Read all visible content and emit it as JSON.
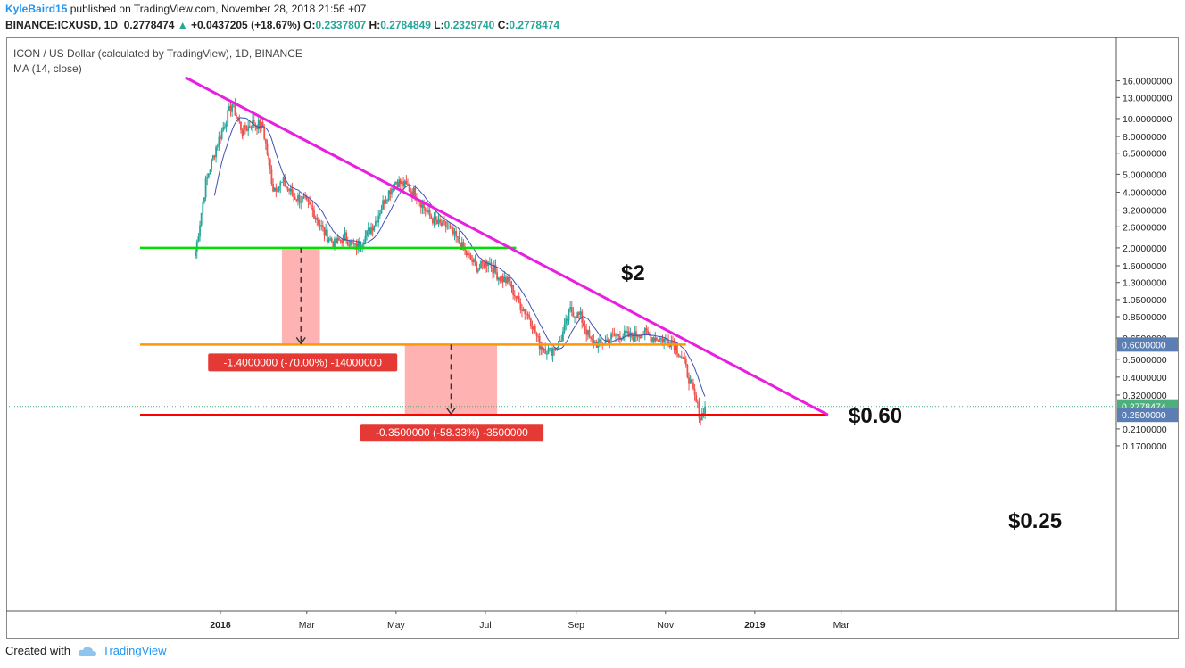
{
  "header": {
    "author": "KyleBaird15",
    "published": "published on TradingView.com, November 28, 2018 21:56 +07",
    "symbol": "BINANCE:ICXUSD, 1D",
    "last": "0.2778474",
    "change_arrow": "▲",
    "change": "+0.0437205 (+18.67%)",
    "o_label": "O:",
    "o": "0.2337807",
    "h_label": "H:",
    "h": "0.2784849",
    "l_label": "L:",
    "l": "0.2329740",
    "c_label": "C:",
    "c": "0.2778474"
  },
  "legend": {
    "title": "ICON / US Dollar (calculated by TradingView), 1D, BINANCE",
    "indicator": "MA (14, close)"
  },
  "annotations": {
    "level_2": "$2",
    "level_060": "$0.60",
    "level_025": "$0.25",
    "drop1": "-1.4000000 (-70.00%) -14000000",
    "drop2": "-0.3500000 (-58.33%) -3500000",
    "price_tag_060": "0.6000000",
    "price_tag_last": "0.2778474",
    "price_tag_025": "0.2500000"
  },
  "footer": {
    "created": "Created with",
    "brand": "TradingView"
  },
  "colors": {
    "up": "#26a69a",
    "down": "#ef5350",
    "ma": "#3f51b5",
    "trend": "#e91ee0",
    "green_level": "#00e000",
    "orange_level": "#ff9800",
    "red_level": "#ff0000",
    "shade": "#ffb2b2",
    "tag_blue": "#5b7fb5",
    "tag_green": "#4caf7d"
  },
  "chart_data": {
    "type": "candlestick",
    "scale": "log",
    "y_ticks": [
      "16.0000000",
      "13.0000000",
      "10.0000000",
      "8.0000000",
      "6.5000000",
      "5.0000000",
      "4.0000000",
      "3.2000000",
      "2.6000000",
      "2.0000000",
      "1.6000000",
      "1.3000000",
      "1.0500000",
      "0.8500000",
      "0.6500000",
      "0.5000000",
      "0.4000000",
      "0.3200000",
      "0.2100000",
      "0.1700000"
    ],
    "x_ticks": [
      "2018",
      "Mar",
      "May",
      "Jul",
      "Sep",
      "Nov",
      "2019",
      "Mar"
    ],
    "levels": [
      {
        "name": "support $2",
        "value": 2.0
      },
      {
        "name": "support $0.60",
        "value": 0.6
      },
      {
        "name": "target $0.25",
        "value": 0.25
      }
    ],
    "trendline": {
      "from": {
        "date": "2017-12-08",
        "value": 16.7
      },
      "to": {
        "date": "2019-02-20",
        "value": 0.25
      }
    },
    "measures": [
      {
        "from": 2.0,
        "to": 0.6,
        "change": -1.4,
        "pct": -70.0
      },
      {
        "from": 0.6,
        "to": 0.25,
        "change": -0.35,
        "pct": -58.33
      }
    ],
    "weekly_closes": [
      {
        "date": "2017-12-15",
        "close": 1.9
      },
      {
        "date": "2017-12-22",
        "close": 4.5
      },
      {
        "date": "2017-12-29",
        "close": 7.0
      },
      {
        "date": "2018-01-05",
        "close": 10.0
      },
      {
        "date": "2018-01-09",
        "close": 12.0
      },
      {
        "date": "2018-01-16",
        "close": 8.5
      },
      {
        "date": "2018-01-23",
        "close": 9.5
      },
      {
        "date": "2018-01-30",
        "close": 9.0
      },
      {
        "date": "2018-02-06",
        "close": 4.2
      },
      {
        "date": "2018-02-13",
        "close": 4.5
      },
      {
        "date": "2018-02-20",
        "close": 3.8
      },
      {
        "date": "2018-02-27",
        "close": 3.6
      },
      {
        "date": "2018-03-06",
        "close": 3.1
      },
      {
        "date": "2018-03-13",
        "close": 2.4
      },
      {
        "date": "2018-03-20",
        "close": 2.1
      },
      {
        "date": "2018-03-27",
        "close": 2.3
      },
      {
        "date": "2018-04-03",
        "close": 2.0
      },
      {
        "date": "2018-04-10",
        "close": 2.3
      },
      {
        "date": "2018-04-17",
        "close": 2.8
      },
      {
        "date": "2018-04-24",
        "close": 3.8
      },
      {
        "date": "2018-05-01",
        "close": 4.6
      },
      {
        "date": "2018-05-08",
        "close": 4.3
      },
      {
        "date": "2018-05-15",
        "close": 3.9
      },
      {
        "date": "2018-05-22",
        "close": 3.1
      },
      {
        "date": "2018-05-29",
        "close": 2.7
      },
      {
        "date": "2018-06-05",
        "close": 2.6
      },
      {
        "date": "2018-06-12",
        "close": 2.2
      },
      {
        "date": "2018-06-19",
        "close": 1.8
      },
      {
        "date": "2018-06-26",
        "close": 1.55
      },
      {
        "date": "2018-07-03",
        "close": 1.7
      },
      {
        "date": "2018-07-10",
        "close": 1.4
      },
      {
        "date": "2018-07-17",
        "close": 1.3
      },
      {
        "date": "2018-07-24",
        "close": 1.0
      },
      {
        "date": "2018-07-31",
        "close": 0.85
      },
      {
        "date": "2018-08-07",
        "close": 0.6
      },
      {
        "date": "2018-08-14",
        "close": 0.55
      },
      {
        "date": "2018-08-21",
        "close": 0.62
      },
      {
        "date": "2018-08-28",
        "close": 0.92
      },
      {
        "date": "2018-09-04",
        "close": 0.85
      },
      {
        "date": "2018-09-11",
        "close": 0.62
      },
      {
        "date": "2018-09-18",
        "close": 0.6
      },
      {
        "date": "2018-09-25",
        "close": 0.66
      },
      {
        "date": "2018-10-02",
        "close": 0.68
      },
      {
        "date": "2018-10-09",
        "close": 0.66
      },
      {
        "date": "2018-10-16",
        "close": 0.7
      },
      {
        "date": "2018-10-23",
        "close": 0.66
      },
      {
        "date": "2018-10-30",
        "close": 0.64
      },
      {
        "date": "2018-11-06",
        "close": 0.62
      },
      {
        "date": "2018-11-13",
        "close": 0.5
      },
      {
        "date": "2018-11-20",
        "close": 0.33
      },
      {
        "date": "2018-11-25",
        "close": 0.24
      },
      {
        "date": "2018-11-28",
        "close": 0.2778
      }
    ]
  }
}
